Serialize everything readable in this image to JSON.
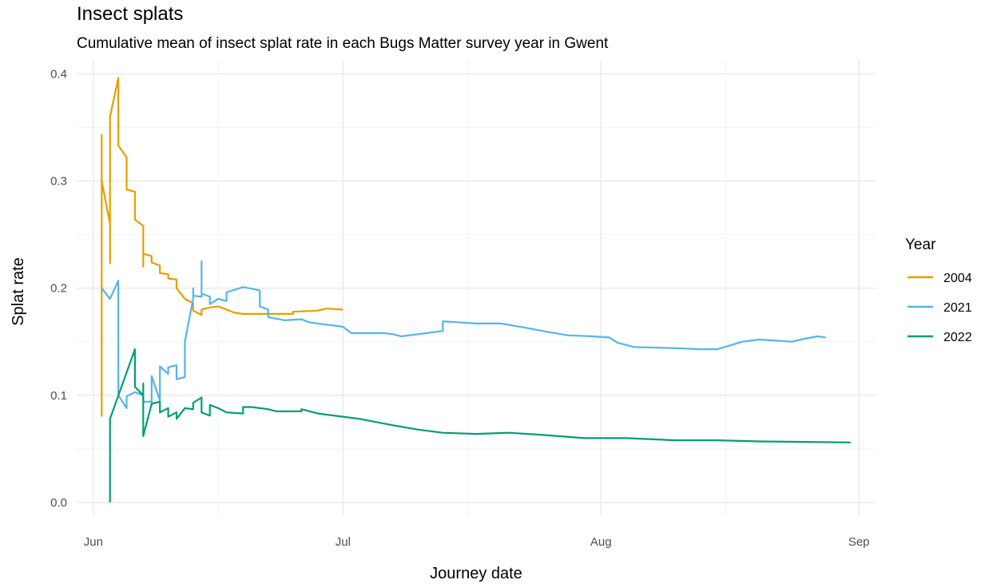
{
  "chart_data": {
    "type": "line",
    "title": "Insect splats",
    "subtitle": "Cumulative mean of insect splat rate in each Bugs Matter survey year in Gwent",
    "xlabel": "Journey date",
    "ylabel": "Splat rate",
    "x_ticks": [
      "Jun",
      "Jul",
      "Aug",
      "Sep"
    ],
    "y_ticks": [
      "0.0",
      "0.1",
      "0.2",
      "0.3",
      "0.4"
    ],
    "xlim": [
      "05-30",
      "09-03"
    ],
    "ylim": [
      -0.012,
      0.413
    ],
    "grid": true,
    "legend": {
      "title": "Year",
      "position": "right"
    },
    "series": [
      {
        "name": "2004",
        "color": "#E69F00",
        "points": [
          [
            "06-02",
            0.08
          ],
          [
            "06-02",
            0.343
          ],
          [
            "06-02",
            0.3
          ],
          [
            "06-03",
            0.26
          ],
          [
            "06-03",
            0.34
          ],
          [
            "06-03",
            0.223
          ],
          [
            "06-03",
            0.36
          ],
          [
            "06-04",
            0.396
          ],
          [
            "06-04",
            0.333
          ],
          [
            "06-05",
            0.322
          ],
          [
            "06-05",
            0.292
          ],
          [
            "06-06",
            0.29
          ],
          [
            "06-06",
            0.264
          ],
          [
            "06-07",
            0.258
          ],
          [
            "06-07",
            0.22
          ],
          [
            "06-07",
            0.232
          ],
          [
            "06-08",
            0.23
          ],
          [
            "06-08",
            0.224
          ],
          [
            "06-09",
            0.221
          ],
          [
            "06-09",
            0.214
          ],
          [
            "06-10",
            0.213
          ],
          [
            "06-10",
            0.209
          ],
          [
            "06-11",
            0.208
          ],
          [
            "06-11",
            0.2
          ],
          [
            "06-12",
            0.19
          ],
          [
            "06-13",
            0.186
          ],
          [
            "06-13",
            0.179
          ],
          [
            "06-14",
            0.175
          ],
          [
            "06-14",
            0.18
          ],
          [
            "06-15",
            0.182
          ],
          [
            "06-16",
            0.183
          ],
          [
            "06-17",
            0.18
          ],
          [
            "06-18",
            0.177
          ],
          [
            "06-19",
            0.176
          ],
          [
            "06-22",
            0.176
          ],
          [
            "06-25",
            0.176
          ],
          [
            "06-25",
            0.178
          ],
          [
            "06-28",
            0.179
          ],
          [
            "06-29",
            0.181
          ],
          [
            "07-01",
            0.18
          ]
        ]
      },
      {
        "name": "2021",
        "color": "#56B4E9",
        "points": [
          [
            "06-02",
            0.2
          ],
          [
            "06-03",
            0.19
          ],
          [
            "06-04",
            0.207
          ],
          [
            "06-04",
            0.104
          ],
          [
            "06-04",
            0.1
          ],
          [
            "06-05",
            0.088
          ],
          [
            "06-05",
            0.099
          ],
          [
            "06-06",
            0.103
          ],
          [
            "06-07",
            0.1
          ],
          [
            "06-07",
            0.094
          ],
          [
            "06-08",
            0.094
          ],
          [
            "06-08",
            0.091
          ],
          [
            "06-08",
            0.118
          ],
          [
            "06-09",
            0.095
          ],
          [
            "06-09",
            0.127
          ],
          [
            "06-10",
            0.12
          ],
          [
            "06-10",
            0.126
          ],
          [
            "06-11",
            0.128
          ],
          [
            "06-11",
            0.115
          ],
          [
            "06-12",
            0.117
          ],
          [
            "06-12",
            0.15
          ],
          [
            "06-13",
            0.19
          ],
          [
            "06-13",
            0.2
          ],
          [
            "06-13",
            0.193
          ],
          [
            "06-14",
            0.192
          ],
          [
            "06-14",
            0.225
          ],
          [
            "06-14",
            0.195
          ],
          [
            "06-15",
            0.192
          ],
          [
            "06-15",
            0.185
          ],
          [
            "06-16",
            0.19
          ],
          [
            "06-17",
            0.188
          ],
          [
            "06-17",
            0.196
          ],
          [
            "06-19",
            0.201
          ],
          [
            "06-21",
            0.198
          ],
          [
            "06-21",
            0.183
          ],
          [
            "06-22",
            0.18
          ],
          [
            "06-22",
            0.173
          ],
          [
            "06-24",
            0.17
          ],
          [
            "06-26",
            0.171
          ],
          [
            "06-27",
            0.168
          ],
          [
            "06-29",
            0.166
          ],
          [
            "07-01",
            0.164
          ],
          [
            "07-02",
            0.158
          ],
          [
            "07-06",
            0.158
          ],
          [
            "07-07",
            0.157
          ],
          [
            "07-08",
            0.155
          ],
          [
            "07-13",
            0.16
          ],
          [
            "07-13",
            0.169
          ],
          [
            "07-17",
            0.167
          ],
          [
            "07-20",
            0.167
          ],
          [
            "07-23",
            0.163
          ],
          [
            "07-25",
            0.16
          ],
          [
            "07-28",
            0.156
          ],
          [
            "07-31",
            0.155
          ],
          [
            "08-02",
            0.154
          ],
          [
            "08-03",
            0.149
          ],
          [
            "08-05",
            0.145
          ],
          [
            "08-10",
            0.144
          ],
          [
            "08-13",
            0.143
          ],
          [
            "08-15",
            0.143
          ],
          [
            "08-18",
            0.15
          ],
          [
            "08-20",
            0.152
          ],
          [
            "08-24",
            0.15
          ],
          [
            "08-25",
            0.152
          ],
          [
            "08-27",
            0.155
          ],
          [
            "08-28",
            0.154
          ]
        ]
      },
      {
        "name": "2022",
        "color": "#009E73",
        "points": [
          [
            "06-03",
            0.0
          ],
          [
            "06-03",
            0.078
          ],
          [
            "06-06",
            0.143
          ],
          [
            "06-06",
            0.108
          ],
          [
            "06-07",
            0.1
          ],
          [
            "06-07",
            0.095
          ],
          [
            "06-07",
            0.111
          ],
          [
            "06-07",
            0.062
          ],
          [
            "06-08",
            0.092
          ],
          [
            "06-09",
            0.094
          ],
          [
            "06-09",
            0.084
          ],
          [
            "06-10",
            0.088
          ],
          [
            "06-10",
            0.08
          ],
          [
            "06-11",
            0.084
          ],
          [
            "06-11",
            0.078
          ],
          [
            "06-12",
            0.088
          ],
          [
            "06-13",
            0.087
          ],
          [
            "06-13",
            0.093
          ],
          [
            "06-14",
            0.098
          ],
          [
            "06-14",
            0.084
          ],
          [
            "06-15",
            0.081
          ],
          [
            "06-15",
            0.091
          ],
          [
            "06-16",
            0.088
          ],
          [
            "06-17",
            0.084
          ],
          [
            "06-19",
            0.083
          ],
          [
            "06-19",
            0.089
          ],
          [
            "06-20",
            0.089
          ],
          [
            "06-22",
            0.087
          ],
          [
            "06-23",
            0.085
          ],
          [
            "06-26",
            0.085
          ],
          [
            "06-26",
            0.087
          ],
          [
            "06-28",
            0.083
          ],
          [
            "07-01",
            0.08
          ],
          [
            "07-03",
            0.078
          ],
          [
            "07-05",
            0.075
          ],
          [
            "07-07",
            0.072
          ],
          [
            "07-10",
            0.068
          ],
          [
            "07-13",
            0.065
          ],
          [
            "07-17",
            0.064
          ],
          [
            "07-21",
            0.065
          ],
          [
            "07-25",
            0.063
          ],
          [
            "07-30",
            0.06
          ],
          [
            "08-04",
            0.06
          ],
          [
            "08-10",
            0.058
          ],
          [
            "08-15",
            0.058
          ],
          [
            "08-20",
            0.057
          ],
          [
            "08-31",
            0.056
          ]
        ]
      }
    ]
  }
}
